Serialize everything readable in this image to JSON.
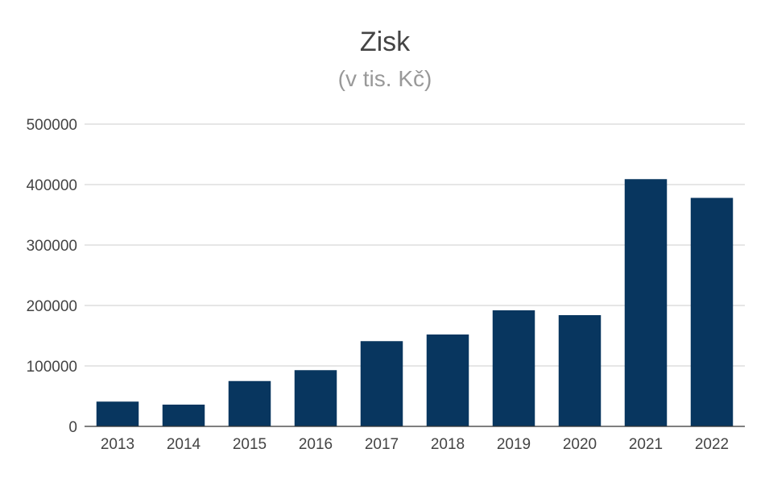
{
  "chart_data": {
    "type": "bar",
    "title": "Zisk",
    "subtitle": "(v tis. Kč)",
    "xlabel": "",
    "ylabel": "",
    "categories": [
      "2013",
      "2014",
      "2015",
      "2016",
      "2017",
      "2018",
      "2019",
      "2020",
      "2021",
      "2022"
    ],
    "values": [
      41000,
      36000,
      75000,
      93000,
      141000,
      152000,
      192000,
      184000,
      409000,
      378000
    ],
    "ylim": [
      0,
      500000
    ],
    "yticks": [
      "0",
      "100000",
      "200000",
      "300000",
      "400000",
      "500000"
    ],
    "grid": true,
    "legend": "none",
    "colors": {
      "bar": "#08365f",
      "grid": "#cccccc",
      "axis": "#333333",
      "title": "#444444",
      "subtitle": "#999999",
      "tick": "#444444"
    }
  }
}
